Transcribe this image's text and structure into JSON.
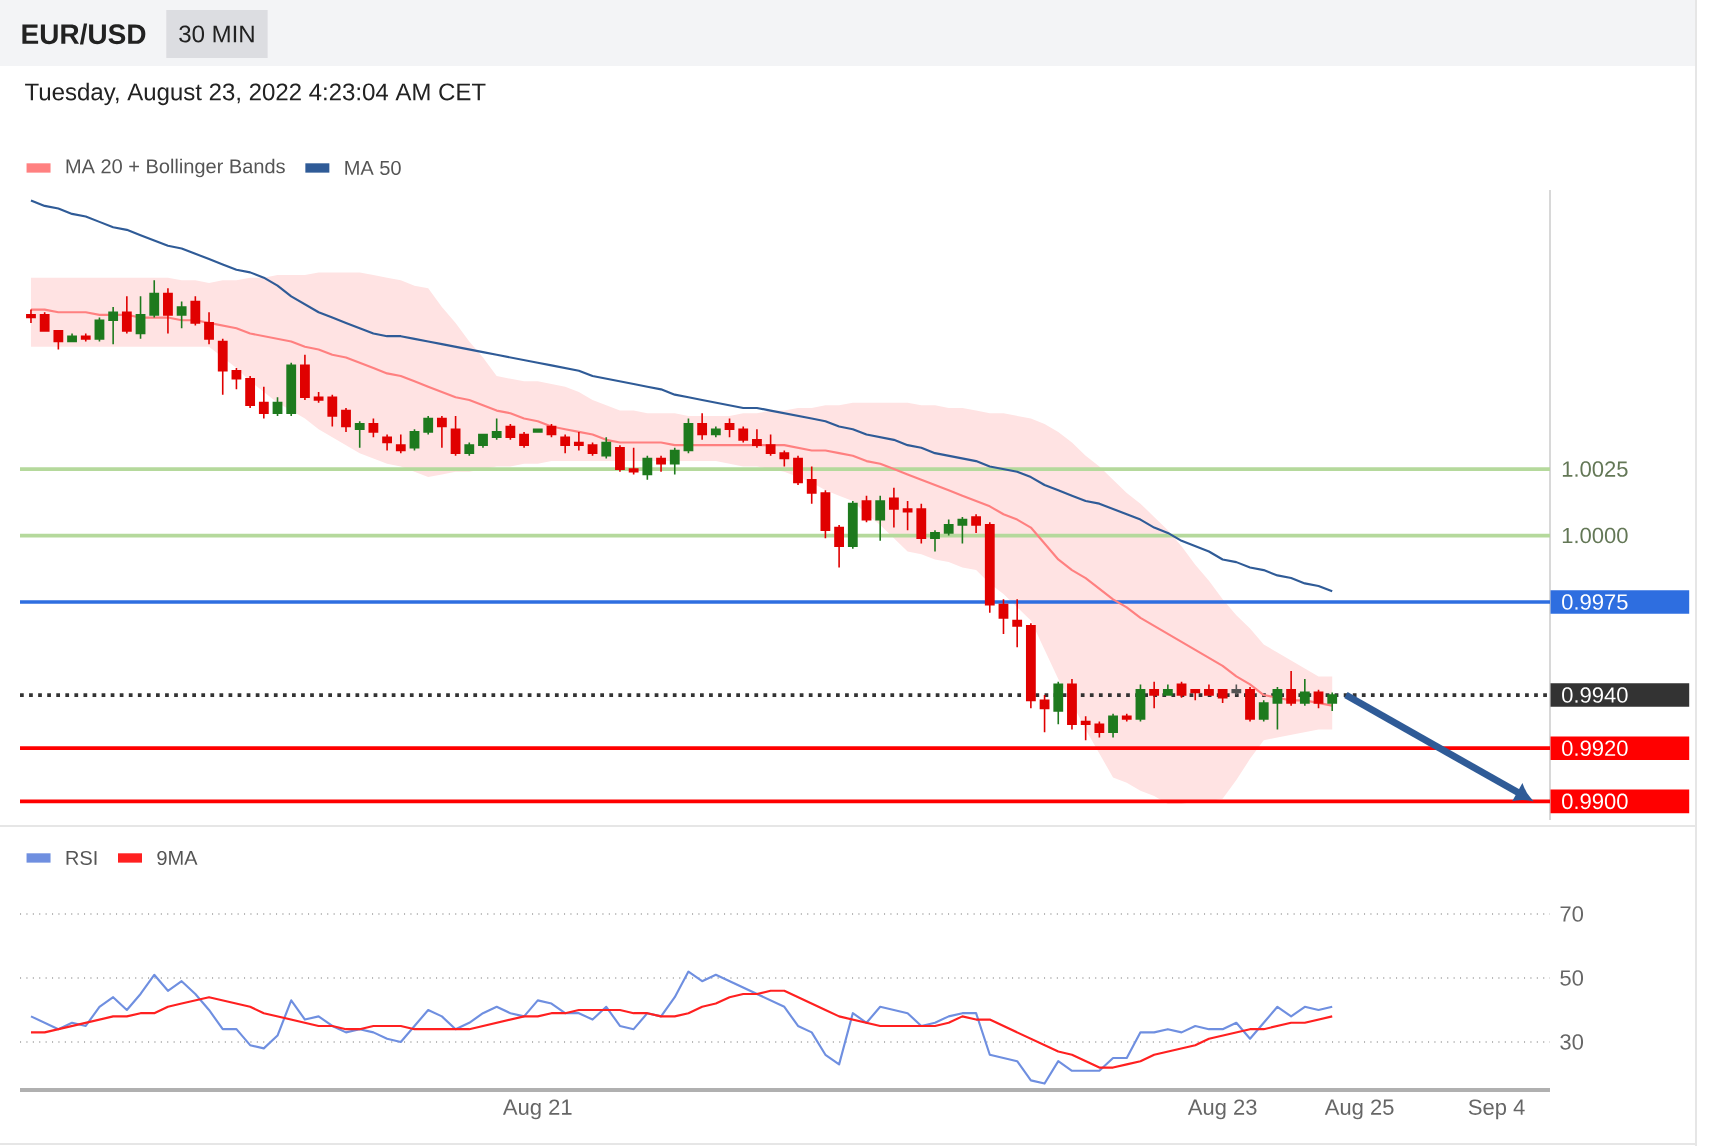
{
  "chart_data": [
    {
      "type": "candlestick",
      "title": "EUR/USD",
      "subtitle": "Tuesday, August 23, 2022 4:23:04 AM CET",
      "annotations": [
        "30 MIN"
      ],
      "categories": [
        null,
        null,
        null,
        null,
        null,
        null,
        null,
        null,
        null,
        null,
        null,
        null,
        null,
        null,
        null,
        null,
        null,
        null,
        null,
        null,
        null,
        null,
        null,
        null,
        null,
        null,
        null,
        null,
        null,
        null,
        null,
        null,
        null,
        null,
        null,
        null,
        null,
        null,
        null,
        null,
        null,
        null,
        null,
        null,
        null,
        null,
        null,
        null,
        null,
        null,
        null,
        null,
        null,
        null,
        null,
        null,
        null,
        null,
        null,
        null,
        null,
        null,
        null,
        null,
        null,
        null,
        null,
        null,
        null,
        null,
        null,
        null,
        null,
        null,
        null,
        null,
        null,
        null,
        null,
        null,
        null,
        null,
        null,
        null,
        null,
        null,
        null,
        null,
        null,
        null,
        null,
        null,
        null,
        null,
        null,
        null,
        null,
        null,
        null,
        null,
        null,
        null,
        null,
        null,
        null,
        null,
        null,
        null,
        null,
        null,
        null
      ],
      "ohlc": [
        [
          1.0083,
          1.0085,
          1.008,
          1.0082
        ],
        [
          1.0083,
          1.0084,
          1.0077,
          1.0077
        ],
        [
          1.0077,
          1.0077,
          1.007,
          1.0073
        ],
        [
          1.0073,
          1.0076,
          1.0073,
          1.0075
        ],
        [
          1.0075,
          1.0076,
          1.0073,
          1.0074
        ],
        [
          1.0074,
          1.0082,
          1.0073,
          1.0081
        ],
        [
          1.0081,
          1.0086,
          1.0072,
          1.0084
        ],
        [
          1.0084,
          1.009,
          1.0076,
          1.0077
        ],
        [
          1.0076,
          1.009,
          1.0074,
          1.0083
        ],
        [
          1.0083,
          1.0096,
          1.0082,
          1.0091
        ],
        [
          1.0091,
          1.0093,
          1.0076,
          1.0083
        ],
        [
          1.0083,
          1.0088,
          1.0078,
          1.0086
        ],
        [
          1.0088,
          1.009,
          1.0079,
          1.008
        ],
        [
          1.008,
          1.0084,
          1.0072,
          1.0074
        ],
        [
          1.0073,
          1.0074,
          1.0053,
          1.0062
        ],
        [
          1.0062,
          1.0063,
          1.0055,
          1.0059
        ],
        [
          1.0059,
          1.006,
          1.0048,
          1.0049
        ],
        [
          1.005,
          1.0056,
          1.0044,
          1.0046
        ],
        [
          1.0046,
          1.0052,
          1.0045,
          1.005
        ],
        [
          1.0046,
          1.0065,
          1.0045,
          1.0064
        ],
        [
          1.0064,
          1.0068,
          1.0051,
          1.0052
        ],
        [
          1.0052,
          1.0054,
          1.005,
          1.0051
        ],
        [
          1.0052,
          1.0053,
          1.0041,
          1.0045
        ],
        [
          1.0047,
          1.0048,
          1.0039,
          1.0041
        ],
        [
          1.004,
          1.0043,
          1.0033,
          1.0042
        ],
        [
          1.0042,
          1.0044,
          1.0037,
          1.0039
        ],
        [
          1.0037,
          1.0038,
          1.0032,
          1.0035
        ],
        [
          1.0034,
          1.0038,
          1.0031,
          1.0032
        ],
        [
          1.0033,
          1.004,
          1.0032,
          1.0039
        ],
        [
          1.0039,
          1.0045,
          1.0038,
          1.0044
        ],
        [
          1.0044,
          1.0045,
          1.0033,
          1.0041
        ],
        [
          1.004,
          1.0045,
          1.003,
          1.0031
        ],
        [
          1.0031,
          1.0035,
          1.003,
          1.0034
        ],
        [
          1.0034,
          1.0038,
          1.0033,
          1.0038
        ],
        [
          1.0037,
          1.0044,
          1.0036,
          1.0039
        ],
        [
          1.0041,
          1.0042,
          1.0036,
          1.0037
        ],
        [
          1.0038,
          1.0039,
          1.0033,
          1.0034
        ],
        [
          1.0039,
          1.004,
          1.0039,
          1.004
        ],
        [
          1.0041,
          1.0042,
          1.0037,
          1.0038
        ],
        [
          1.0037,
          1.0038,
          1.0031,
          1.0034
        ],
        [
          1.0035,
          1.0039,
          1.0032,
          1.0034
        ],
        [
          1.0034,
          1.0035,
          1.003,
          1.0031
        ],
        [
          1.003,
          1.0037,
          1.0029,
          1.0035
        ],
        [
          1.0033,
          1.0034,
          1.0024,
          1.0025
        ],
        [
          1.0025,
          1.0033,
          1.0023,
          1.0024
        ],
        [
          1.0023,
          1.003,
          1.0021,
          1.0029
        ],
        [
          1.0029,
          1.003,
          1.0024,
          1.0027
        ],
        [
          1.0027,
          1.0033,
          1.0023,
          1.0032
        ],
        [
          1.0032,
          1.0044,
          1.0031,
          1.0042
        ],
        [
          1.0042,
          1.0046,
          1.0036,
          1.0038
        ],
        [
          1.0038,
          1.0041,
          1.0037,
          1.004
        ],
        [
          1.0042,
          1.0044,
          1.0037,
          1.004
        ],
        [
          1.004,
          1.0041,
          1.0035,
          1.0036
        ],
        [
          1.0036,
          1.004,
          1.0033,
          1.0034
        ],
        [
          1.0034,
          1.0038,
          1.003,
          1.0031
        ],
        [
          1.0031,
          1.0032,
          1.0026,
          1.0029
        ],
        [
          1.0029,
          1.003,
          1.0019,
          1.002
        ],
        [
          1.0021,
          1.0026,
          1.0012,
          1.0016
        ],
        [
          1.0016,
          1.0017,
          0.9999,
          1.0002
        ],
        [
          1.0003,
          1.0004,
          0.9988,
          0.9996
        ],
        [
          0.9996,
          1.0013,
          0.9995,
          1.0012
        ],
        [
          1.0013,
          1.0015,
          1.0005,
          1.0006
        ],
        [
          1.0006,
          1.0015,
          0.9998,
          1.0013
        ],
        [
          1.0014,
          1.0018,
          1.0003,
          1.001
        ],
        [
          1.001,
          1.0013,
          1.0002,
          1.0009
        ],
        [
          1.001,
          1.0012,
          0.9997,
          0.9999
        ],
        [
          0.9999,
          1.0002,
          0.9994,
          1.0001
        ],
        [
          1.0001,
          1.0006,
          1.0,
          1.0004
        ],
        [
          1.0004,
          1.0007,
          0.9997,
          1.0006
        ],
        [
          1.0007,
          1.0008,
          1.0001,
          1.0004
        ],
        [
          1.0004,
          1.0005,
          0.9971,
          0.9974
        ],
        [
          0.9974,
          0.9976,
          0.9963,
          0.9969
        ],
        [
          0.9968,
          0.9976,
          0.9958,
          0.9966
        ],
        [
          0.9966,
          0.9967,
          0.9935,
          0.9938
        ],
        [
          0.9938,
          0.994,
          0.9926,
          0.9935
        ],
        [
          0.9934,
          0.9945,
          0.9929,
          0.9944
        ],
        [
          0.9944,
          0.9946,
          0.9927,
          0.9929
        ],
        [
          0.993,
          0.9932,
          0.9923,
          0.9929
        ],
        [
          0.9929,
          0.993,
          0.9924,
          0.9926
        ],
        [
          0.9926,
          0.9933,
          0.9924,
          0.9932
        ],
        [
          0.9932,
          0.9933,
          0.993,
          0.9931
        ],
        [
          0.9931,
          0.9944,
          0.993,
          0.9942
        ],
        [
          0.9942,
          0.9945,
          0.9935,
          0.994
        ],
        [
          0.994,
          0.9944,
          0.994,
          0.9942
        ],
        [
          0.9944,
          0.9945,
          0.9939,
          0.994
        ],
        [
          0.9942,
          0.9942,
          0.9938,
          0.9941
        ],
        [
          0.9942,
          0.9944,
          0.994,
          0.994
        ],
        [
          0.9942,
          0.9942,
          0.9937,
          0.9939
        ],
        [
          0.9941,
          0.9944,
          0.994,
          0.9942
        ],
        [
          0.9942,
          0.9943,
          0.993,
          0.9931
        ],
        [
          0.9931,
          0.9938,
          0.993,
          0.9937
        ],
        [
          0.9937,
          0.9943,
          0.9927,
          0.9942
        ],
        [
          0.9942,
          0.9949,
          0.9936,
          0.9937
        ],
        [
          0.9937,
          0.9946,
          0.9936,
          0.9941
        ],
        [
          0.9941,
          0.9942,
          0.9935,
          0.9937
        ],
        [
          0.9937,
          0.9941,
          0.9934,
          0.994
        ],
        null,
        null,
        null,
        null,
        null,
        null,
        null,
        null,
        null,
        null,
        null,
        null,
        null,
        null,
        null
      ],
      "colors": [
        "#e00000",
        "#e00000",
        "#e00000",
        "#1e7a1e",
        "#e00000",
        "#1e7a1e",
        "#1e7a1e",
        "#e00000",
        "#1e7a1e",
        "#1e7a1e",
        "#e00000",
        "#1e7a1e",
        "#e00000",
        "#e00000",
        "#e00000",
        "#e00000",
        "#e00000",
        "#e00000",
        "#1e7a1e",
        "#1e7a1e",
        "#e00000",
        "#e00000",
        "#e00000",
        "#e00000",
        "#1e7a1e",
        "#e00000",
        "#e00000",
        "#e00000",
        "#1e7a1e",
        "#1e7a1e",
        "#e00000",
        "#e00000",
        "#1e7a1e",
        "#1e7a1e",
        "#1e7a1e",
        "#e00000",
        "#e00000",
        "#1e7a1e",
        "#e00000",
        "#e00000",
        "#e00000",
        "#e00000",
        "#1e7a1e",
        "#e00000",
        "#e00000",
        "#1e7a1e",
        "#e00000",
        "#1e7a1e",
        "#1e7a1e",
        "#e00000",
        "#1e7a1e",
        "#e00000",
        "#e00000",
        "#e00000",
        "#e00000",
        "#e00000",
        "#e00000",
        "#e00000",
        "#e00000",
        "#e00000",
        "#1e7a1e",
        "#e00000",
        "#1e7a1e",
        "#e00000",
        "#e00000",
        "#e00000",
        "#1e7a1e",
        "#1e7a1e",
        "#1e7a1e",
        "#e00000",
        "#e00000",
        "#e00000",
        "#e00000",
        "#e00000",
        "#e00000",
        "#1e7a1e",
        "#e00000",
        "#e00000",
        "#e00000",
        "#1e7a1e",
        "#e00000",
        "#1e7a1e",
        "#e00000",
        "#1e7a1e",
        "#e00000",
        "#e00000",
        "#e00000",
        "#e00000",
        "#555555",
        "#e00000",
        "#1e7a1e",
        "#1e7a1e",
        "#e00000",
        "#1e7a1e",
        "#e00000",
        "#1e7a1e",
        null,
        null,
        null,
        null,
        null,
        null,
        null,
        null,
        null,
        null,
        null,
        null,
        null,
        null,
        null
      ],
      "series": [
        {
          "name": "MA 20 + Bollinger Bands",
          "type": "line",
          "color": "#ff8080",
          "values": [
            1.0085,
            1.0085,
            1.0084,
            1.0084,
            1.0084,
            1.0083,
            1.0083,
            1.0083,
            1.0082,
            1.0082,
            1.0082,
            1.0081,
            1.0081,
            1.008,
            1.0079,
            1.0078,
            1.0076,
            1.0075,
            1.0074,
            1.0073,
            1.0071,
            1.007,
            1.0068,
            1.0067,
            1.0065,
            1.0063,
            1.0061,
            1.006,
            1.0058,
            1.0056,
            1.0054,
            1.0052,
            1.0051,
            1.0049,
            1.0047,
            1.0046,
            1.0044,
            1.0043,
            1.0041,
            1.004,
            1.0039,
            1.0038,
            1.0036,
            1.0035,
            1.0035,
            1.0035,
            1.0035,
            1.0034,
            1.0034,
            1.0034,
            1.0034,
            1.0034,
            1.0034,
            1.0034,
            1.0034,
            1.0034,
            1.0033,
            1.0032,
            1.0032,
            1.0031,
            1.003,
            1.0028,
            1.0027,
            1.0025,
            1.0023,
            1.0021,
            1.0019,
            1.0017,
            1.0015,
            1.0013,
            1.0011,
            1.0008,
            1.0006,
            1.0003,
            0.9997,
            0.9991,
            0.9987,
            0.9984,
            0.998,
            0.9976,
            0.9973,
            0.9969,
            0.9966,
            0.9963,
            0.996,
            0.9957,
            0.9954,
            0.9951,
            0.9947,
            0.9944,
            0.994,
            0.9939,
            0.9938,
            0.9938,
            0.9937,
            0.9936,
            null,
            null,
            null,
            null,
            null,
            null,
            null,
            null,
            null,
            null,
            null,
            null,
            null,
            null,
            null
          ],
          "upper": [
            1.0097,
            1.0097,
            1.0097,
            1.0097,
            1.0097,
            1.0097,
            1.0097,
            1.0097,
            1.0097,
            1.0097,
            1.0097,
            1.0096,
            1.0096,
            1.0095,
            1.0096,
            1.0096,
            1.0097,
            1.0097,
            1.0098,
            1.0098,
            1.0098,
            1.0099,
            1.0099,
            1.0099,
            1.0099,
            1.0098,
            1.0097,
            1.0096,
            1.0094,
            1.0093,
            1.0086,
            1.008,
            1.0073,
            1.0067,
            1.006,
            1.0059,
            1.0058,
            1.0058,
            1.0057,
            1.0056,
            1.0054,
            1.0051,
            1.0049,
            1.0047,
            1.0047,
            1.0046,
            1.0046,
            1.0046,
            1.0045,
            1.0045,
            1.0045,
            1.0045,
            1.0046,
            1.0046,
            1.0047,
            1.0047,
            1.0048,
            1.0048,
            1.0049,
            1.0049,
            1.005,
            1.005,
            1.005,
            1.005,
            1.005,
            1.0049,
            1.0049,
            1.0048,
            1.0048,
            1.0047,
            1.0046,
            1.0046,
            1.0045,
            1.0044,
            1.0042,
            1.0039,
            1.0035,
            1.003,
            1.0026,
            1.0021,
            1.0016,
            1.0012,
            1.0007,
            1.0002,
            0.9996,
            0.9989,
            0.9983,
            0.9976,
            0.997,
            0.9965,
            0.9959,
            0.9956,
            0.9953,
            0.995,
            0.9947,
            0.9947,
            null,
            null,
            null,
            null,
            null,
            null,
            null,
            null,
            null,
            null,
            null,
            null,
            null,
            null,
            null
          ],
          "lower": [
            1.0071,
            1.0071,
            1.0071,
            1.0071,
            1.0071,
            1.0071,
            1.0071,
            1.0071,
            1.0071,
            1.0071,
            1.0071,
            1.0071,
            1.0071,
            1.0071,
            1.0067,
            1.0063,
            1.0058,
            1.0054,
            1.005,
            1.0047,
            1.0044,
            1.004,
            1.0037,
            1.0034,
            1.0031,
            1.0029,
            1.0027,
            1.0026,
            1.0024,
            1.0022,
            1.0023,
            1.0024,
            1.0024,
            1.0025,
            1.0026,
            1.0026,
            1.0027,
            1.0027,
            1.0028,
            1.0028,
            1.0028,
            1.0028,
            1.0028,
            1.0028,
            1.0028,
            1.0028,
            1.0028,
            1.0028,
            1.0028,
            1.0028,
            1.0028,
            1.0027,
            1.0026,
            1.0026,
            1.0025,
            1.0024,
            1.0022,
            1.002,
            1.0017,
            1.0015,
            1.0013,
            1.0008,
            1.0004,
            0.9999,
            0.9994,
            0.9993,
            0.9991,
            0.999,
            0.9988,
            0.9987,
            0.9982,
            0.9978,
            0.9973,
            0.9968,
            0.9957,
            0.9946,
            0.9937,
            0.9927,
            0.9918,
            0.9909,
            0.9907,
            0.9904,
            0.9902,
            0.9899,
            0.9899,
            0.99,
            0.99,
            0.9901,
            0.9908,
            0.9916,
            0.9923,
            0.9924,
            0.9925,
            0.9926,
            0.9927,
            0.9927,
            null,
            null,
            null,
            null,
            null,
            null,
            null,
            null,
            null,
            null,
            null,
            null,
            null,
            null,
            null
          ]
        },
        {
          "name": "MA 50",
          "type": "line",
          "color": "#2f5b97",
          "values": [
            1.0126,
            1.0124,
            1.0123,
            1.0121,
            1.012,
            1.0118,
            1.0116,
            1.0115,
            1.0113,
            1.0111,
            1.0109,
            1.0108,
            1.0106,
            1.0104,
            1.0102,
            1.01,
            1.0099,
            1.0097,
            1.0094,
            1.009,
            1.0087,
            1.0084,
            1.0082,
            1.008,
            1.0078,
            1.0076,
            1.0075,
            1.0075,
            1.0074,
            1.0073,
            1.0072,
            1.0071,
            1.007,
            1.0069,
            1.0068,
            1.0067,
            1.0066,
            1.0065,
            1.0064,
            1.0063,
            1.0062,
            1.006,
            1.0059,
            1.0058,
            1.0057,
            1.0056,
            1.0055,
            1.0053,
            1.0052,
            1.0051,
            1.005,
            1.0049,
            1.0048,
            1.0048,
            1.0047,
            1.0046,
            1.0045,
            1.0044,
            1.0043,
            1.0041,
            1.004,
            1.0038,
            1.0037,
            1.0036,
            1.0034,
            1.0033,
            1.0031,
            1.003,
            1.0029,
            1.0028,
            1.0026,
            1.0025,
            1.0024,
            1.0022,
            1.0019,
            1.0017,
            1.0015,
            1.0013,
            1.0012,
            1.001,
            1.0008,
            1.0006,
            1.0003,
            1.0001,
            0.9998,
            0.9996,
            0.9994,
            0.9991,
            0.999,
            0.9988,
            0.9987,
            0.9985,
            0.9984,
            0.9982,
            0.9981,
            0.9979,
            null,
            null,
            null,
            null,
            null,
            null,
            null,
            null,
            null,
            null,
            null,
            null,
            null,
            null,
            null
          ]
        }
      ],
      "ref_lines": [
        {
          "axis": "y",
          "value": 1.0025,
          "color": "#b5d99c"
        },
        {
          "axis": "y",
          "value": 1.0,
          "color": "#b5d99c"
        },
        {
          "axis": "y",
          "value": 0.9975,
          "color": "#2e6ee0"
        },
        {
          "axis": "y",
          "value": 0.994,
          "color": "#333333",
          "line_style": "dotted"
        },
        {
          "axis": "y",
          "value": 0.992,
          "color": "#ff0000"
        },
        {
          "axis": "y",
          "value": 0.99,
          "color": "#ff0000"
        }
      ],
      "ylim": [
        0.9893,
        1.013
      ],
      "yticks": [
        1.0025,
        {
          "value": 1.0,
          "label": "1.0000"
        },
        0.9975,
        {
          "value": 0.994,
          "label": "0.9940"
        },
        {
          "value": 0.992,
          "label": "0.9920"
        },
        {
          "value": 0.99,
          "label": "0.9900"
        }
      ],
      "legend": "top left",
      "tick_labels": "y"
    },
    {
      "type": "line",
      "categories": [
        null,
        null,
        null,
        null,
        null,
        null,
        null,
        null,
        null,
        null,
        null,
        null,
        null,
        null,
        null,
        null,
        null,
        null,
        null,
        null,
        null,
        null,
        null,
        null,
        null,
        null,
        null,
        null,
        null,
        null,
        null,
        null,
        null,
        null,
        null,
        null,
        null,
        "Aug 21",
        null,
        null,
        null,
        null,
        null,
        null,
        null,
        null,
        null,
        null,
        null,
        null,
        null,
        null,
        null,
        null,
        null,
        null,
        null,
        null,
        null,
        null,
        null,
        null,
        null,
        null,
        null,
        null,
        null,
        null,
        null,
        null,
        null,
        null,
        null,
        null,
        null,
        null,
        null,
        null,
        null,
        null,
        null,
        null,
        null,
        null,
        null,
        null,
        null,
        "Aug 23",
        null,
        null,
        null,
        null,
        null,
        null,
        null,
        null,
        null,
        "Aug 25",
        null,
        null,
        null,
        null,
        null,
        null,
        null,
        null,
        null,
        "Sep 4",
        null,
        null,
        null
      ],
      "series": [
        {
          "name": "RSI",
          "color": "#6f8fe0",
          "values": [
            38,
            36,
            34,
            36,
            35,
            41,
            44,
            40,
            45,
            51,
            46,
            49,
            45,
            40,
            34,
            34,
            29,
            28,
            32,
            43,
            37,
            38,
            35,
            33,
            34,
            33,
            31,
            30,
            35,
            40,
            38,
            34,
            36,
            39,
            41,
            39,
            38,
            43,
            42,
            39,
            39,
            37,
            41,
            35,
            34,
            39,
            38,
            44,
            52,
            49,
            51,
            49,
            47,
            45,
            43,
            41,
            35,
            33,
            26,
            23,
            39,
            36,
            41,
            40,
            39,
            35,
            36,
            38,
            39,
            39,
            26,
            25,
            24,
            18,
            17,
            24,
            21,
            21,
            21,
            25,
            25,
            33,
            33,
            34,
            33,
            35,
            34,
            34,
            36,
            31,
            36,
            41,
            38,
            41,
            40,
            41,
            null,
            null,
            null,
            null,
            null,
            null,
            null,
            null,
            null,
            null,
            null,
            null,
            null,
            null,
            null
          ]
        },
        {
          "name": "9MA",
          "color": "#ff2020",
          "values": [
            33,
            33,
            34,
            35,
            36,
            37,
            38,
            38,
            39,
            39,
            41,
            42,
            43,
            44,
            43,
            42,
            41,
            39,
            38,
            37,
            36,
            35,
            35,
            34,
            34,
            35,
            35,
            35,
            34,
            34,
            34,
            34,
            34,
            35,
            36,
            37,
            38,
            38,
            39,
            39,
            40,
            40,
            40,
            40,
            39,
            39,
            38,
            38,
            39,
            41,
            42,
            44,
            45,
            45,
            46,
            46,
            44,
            42,
            40,
            38,
            37,
            36,
            35,
            35,
            35,
            35,
            35,
            36,
            38,
            37,
            37,
            35,
            33,
            31,
            29,
            27,
            26,
            24,
            22,
            22,
            23,
            24,
            26,
            27,
            28,
            29,
            31,
            32,
            33,
            34,
            34,
            35,
            36,
            36,
            37,
            38,
            null,
            null,
            null,
            null,
            null,
            null,
            null,
            null,
            null,
            null,
            null,
            null,
            null,
            null,
            null
          ]
        }
      ],
      "ylim": [
        15,
        70
      ],
      "yticks": [
        30,
        50,
        70
      ],
      "grid": "y",
      "legend": "top left"
    }
  ]
}
